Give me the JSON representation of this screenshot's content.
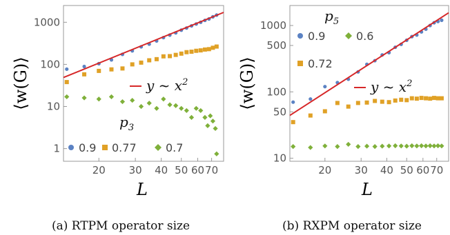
{
  "chart_data": [
    {
      "id": "a",
      "type": "scatter",
      "x_scale": "log",
      "y_scale": "log",
      "xlim": [
        13.5,
        80
      ],
      "ylim": [
        0.5,
        2500
      ],
      "x_ticks": [
        20,
        30,
        40,
        50,
        60,
        70
      ],
      "x_tick_labels": [
        "20",
        "30",
        "40",
        "50",
        "60",
        "70"
      ],
      "y_ticks": [
        1,
        10,
        100,
        1000
      ],
      "y_tick_labels": [
        "1",
        "10",
        "100",
        "1000"
      ],
      "xlabel": "L",
      "ylabel": "⟨w(G)⟩",
      "caption": "(a) RTPM operator size",
      "legend_title": "p",
      "legend_title_sub": "3",
      "fit_label": "y ~ x",
      "fit_label_sup": "2",
      "fit": {
        "coef": 0.268,
        "exp": 2,
        "color": "#d62728"
      },
      "series": [
        {
          "name": "0.9",
          "marker": "circle",
          "color": "#5b82c3",
          "points": [
            [
              14,
              77
            ],
            [
              17,
              89
            ],
            [
              20,
              104
            ],
            [
              23,
              128
            ],
            [
              26,
              173
            ],
            [
              29,
              210
            ],
            [
              32,
              261
            ],
            [
              35,
              302
            ],
            [
              38,
              360
            ],
            [
              41,
              432
            ],
            [
              44,
              497
            ],
            [
              47,
              560
            ],
            [
              50,
              650
            ],
            [
              53,
              730
            ],
            [
              56,
              820
            ],
            [
              59,
              910
            ],
            [
              62,
              1000
            ],
            [
              65,
              1110
            ],
            [
              68,
              1200
            ],
            [
              71,
              1350
            ],
            [
              74,
              1480
            ]
          ]
        },
        {
          "name": "0.77",
          "marker": "square",
          "color": "#e0a126",
          "points": [
            [
              14,
              38
            ],
            [
              17,
              58
            ],
            [
              20,
              70
            ],
            [
              23,
              76
            ],
            [
              26,
              80
            ],
            [
              29,
              100
            ],
            [
              32,
              110
            ],
            [
              35,
              125
            ],
            [
              38,
              133
            ],
            [
              41,
              155
            ],
            [
              44,
              157
            ],
            [
              47,
              168
            ],
            [
              50,
              180
            ],
            [
              53,
              195
            ],
            [
              56,
              200
            ],
            [
              59,
              210
            ],
            [
              62,
              215
            ],
            [
              65,
              225
            ],
            [
              68,
              230
            ],
            [
              71,
              248
            ],
            [
              74,
              265
            ]
          ]
        },
        {
          "name": "0.7",
          "marker": "diamond",
          "color": "#7fb03a",
          "points": [
            [
              14,
              17
            ],
            [
              17,
              16
            ],
            [
              20,
              15
            ],
            [
              23,
              17
            ],
            [
              26,
              13
            ],
            [
              29,
              14
            ],
            [
              32,
              10
            ],
            [
              35,
              12
            ],
            [
              38,
              9
            ],
            [
              41,
              15
            ],
            [
              44,
              11
            ],
            [
              47,
              10.5
            ],
            [
              50,
              9
            ],
            [
              53,
              8
            ],
            [
              56,
              5.5
            ],
            [
              59,
              9
            ],
            [
              62,
              8
            ],
            [
              65,
              5.5
            ],
            [
              67,
              3.5
            ],
            [
              69,
              6
            ],
            [
              71,
              4.5
            ],
            [
              73,
              3
            ],
            [
              74,
              0.75
            ]
          ]
        }
      ]
    },
    {
      "id": "b",
      "type": "scatter",
      "x_scale": "log",
      "y_scale": "log",
      "xlim": [
        13.5,
        80
      ],
      "ylim": [
        9,
        2000
      ],
      "x_ticks": [
        20,
        30,
        40,
        50,
        60,
        70
      ],
      "x_tick_labels": [
        "20",
        "30",
        "40",
        "50",
        "60",
        "70"
      ],
      "y_ticks": [
        10,
        50,
        100,
        500,
        1000
      ],
      "y_tick_labels": [
        "10",
        "50",
        "100",
        "500",
        "1000"
      ],
      "xlabel": "L",
      "ylabel": "⟨w(G)⟩",
      "caption": "(b) RXPM operator size",
      "legend_title": "p",
      "legend_title_sub": "5",
      "fit_label": "y ~ x",
      "fit_label_sup": "2",
      "fit": {
        "coef": 0.2426,
        "exp": 2,
        "color": "#d62728"
      },
      "series": [
        {
          "name": "0.9",
          "marker": "circle",
          "color": "#5b82c3",
          "points": [
            [
              14,
              70
            ],
            [
              17,
              78
            ],
            [
              20,
              120
            ],
            [
              23,
              138
            ],
            [
              26,
              155
            ],
            [
              29,
              200
            ],
            [
              32,
              260
            ],
            [
              35,
              295
            ],
            [
              38,
              360
            ],
            [
              41,
              390
            ],
            [
              44,
              470
            ],
            [
              47,
              520
            ],
            [
              50,
              600
            ],
            [
              53,
              680
            ],
            [
              56,
              720
            ],
            [
              59,
              800
            ],
            [
              62,
              880
            ],
            [
              65,
              1000
            ],
            [
              68,
              1100
            ],
            [
              71,
              1150
            ],
            [
              74,
              1200
            ]
          ]
        },
        {
          "name": "0.72",
          "marker": "square",
          "color": "#e0a126",
          "points": [
            [
              14,
              35
            ],
            [
              17,
              44
            ],
            [
              20,
              51
            ],
            [
              23,
              68
            ],
            [
              26,
              60
            ],
            [
              29,
              68
            ],
            [
              32,
              69
            ],
            [
              35,
              73
            ],
            [
              38,
              71
            ],
            [
              41,
              70
            ],
            [
              44,
              74
            ],
            [
              47,
              76
            ],
            [
              50,
              75
            ],
            [
              53,
              80
            ],
            [
              56,
              79
            ],
            [
              59,
              81
            ],
            [
              62,
              80
            ],
            [
              65,
              79
            ],
            [
              68,
              81
            ],
            [
              71,
              80
            ],
            [
              74,
              80
            ]
          ]
        },
        {
          "name": "0.6",
          "marker": "diamond",
          "color": "#7fb03a",
          "points": [
            [
              14,
              15
            ],
            [
              17,
              14.5
            ],
            [
              20,
              15.3
            ],
            [
              23,
              15
            ],
            [
              26,
              16.2
            ],
            [
              29,
              15
            ],
            [
              32,
              15.2
            ],
            [
              35,
              15
            ],
            [
              38,
              15.2
            ],
            [
              41,
              15.3
            ],
            [
              44,
              15.4
            ],
            [
              47,
              15.3
            ],
            [
              50,
              15.2
            ],
            [
              53,
              15.4
            ],
            [
              56,
              15.3
            ],
            [
              59,
              15.4
            ],
            [
              62,
              15.3
            ],
            [
              65,
              15.4
            ],
            [
              68,
              15.3
            ],
            [
              71,
              15.4
            ],
            [
              74,
              15.3
            ]
          ]
        }
      ]
    }
  ]
}
